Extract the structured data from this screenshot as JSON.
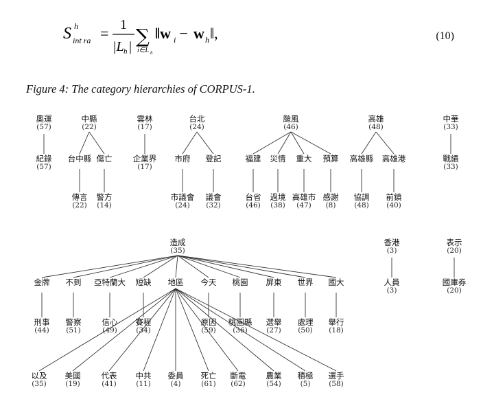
{
  "equation": {
    "lhs": "S",
    "lhs_sup": "h",
    "lhs_sub": "int ra",
    "equals": "=",
    "frac_num": "1",
    "frac_den": "|L",
    "frac_den_sub": "h",
    "frac_den_close": "|",
    "sigma": "∑",
    "sum_sub": "i∈L",
    "sum_sub_h": "h",
    "term_open": "‖w",
    "w_i_sub": "i",
    "minus": " − ",
    "w_h": "w",
    "w_h_sub": "h",
    "term_close": "‖,",
    "number": "(10)"
  },
  "caption": "Figure 4: The category hierarchies of CORPUS-1.",
  "trees": [
    {
      "name": "奧運",
      "count": "(57)",
      "children": [
        {
          "name": "紀錄",
          "count": "(57)"
        }
      ]
    },
    {
      "name": "中縣",
      "count": "(22)",
      "children": [
        {
          "name": "台中縣",
          "count": "",
          "children": [
            {
              "name": "傳言",
              "count": "(22)"
            }
          ]
        },
        {
          "name": "傷亡",
          "count": "",
          "children": [
            {
              "name": "警方",
              "count": "(14)"
            }
          ]
        }
      ]
    },
    {
      "name": "雲林",
      "count": "(17)",
      "children": [
        {
          "name": "企業界",
          "count": "(17)"
        }
      ]
    },
    {
      "name": "台北",
      "count": "(24)",
      "children": [
        {
          "name": "市府",
          "count": "",
          "children": [
            {
              "name": "市議會",
              "count": "(24)"
            }
          ]
        },
        {
          "name": "登記",
          "count": "",
          "children": [
            {
              "name": "議會",
              "count": "(32)"
            }
          ]
        }
      ]
    },
    {
      "name": "颱風",
      "count": "(46)",
      "children": [
        {
          "name": "福建",
          "count": "",
          "children": [
            {
              "name": "台省",
              "count": "(46)"
            }
          ]
        },
        {
          "name": "災情",
          "count": "",
          "children": [
            {
              "name": "過境",
              "count": "(38)"
            }
          ]
        },
        {
          "name": "重大",
          "count": "",
          "children": [
            {
              "name": "高雄市",
              "count": "(47)"
            }
          ]
        },
        {
          "name": "預算",
          "count": "",
          "children": [
            {
              "name": "感謝",
              "count": "(8)"
            }
          ]
        }
      ]
    },
    {
      "name": "高雄",
      "count": "(48)",
      "children": [
        {
          "name": "高雄縣",
          "count": "",
          "children": [
            {
              "name": "協調",
              "count": "(48)"
            }
          ]
        },
        {
          "name": "高雄港",
          "count": "",
          "children": [
            {
              "name": "前鎮",
              "count": "(40)"
            }
          ]
        }
      ]
    },
    {
      "name": "中華",
      "count": "(33)",
      "children": [
        {
          "name": "戰績",
          "count": "(33)"
        }
      ]
    },
    {
      "name": "造成",
      "count": "(35)",
      "children": [
        {
          "name": "金牌",
          "count": "",
          "children": [
            {
              "name": "刑事",
              "count": "(44)"
            }
          ]
        },
        {
          "name": "不到",
          "count": "",
          "children": [
            {
              "name": "警察",
              "count": "(51)"
            }
          ]
        },
        {
          "name": "亞特蘭大",
          "count": "",
          "children": [
            {
              "name": "信心",
              "count": "(49)"
            }
          ]
        },
        {
          "name": "短缺",
          "count": "",
          "children": [
            {
              "name": "賽程",
              "count": "(34)"
            }
          ]
        },
        {
          "name": "地區",
          "count": "",
          "children": [
            {
              "name": "以及",
              "count": "(35)"
            },
            {
              "name": "美國",
              "count": "(19)"
            },
            {
              "name": "代表",
              "count": "(41)"
            },
            {
              "name": "中共",
              "count": "(11)"
            },
            {
              "name": "委員",
              "count": "(4)"
            },
            {
              "name": "死亡",
              "count": "(61)"
            },
            {
              "name": "斷電",
              "count": "(62)"
            },
            {
              "name": "農業",
              "count": "(54)"
            },
            {
              "name": "積極",
              "count": "(5)"
            },
            {
              "name": "選手",
              "count": "(58)"
            }
          ]
        },
        {
          "name": "今天",
          "count": "",
          "children": [
            {
              "name": "原因",
              "count": "(59)"
            }
          ]
        },
        {
          "name": "桃園",
          "count": "",
          "children": [
            {
              "name": "桃園縣",
              "count": "(36)"
            }
          ]
        },
        {
          "name": "屏東",
          "count": "",
          "children": [
            {
              "name": "選舉",
              "count": "(27)"
            }
          ]
        },
        {
          "name": "世界",
          "count": "",
          "children": [
            {
              "name": "處理",
              "count": "(50)"
            }
          ]
        },
        {
          "name": "國大",
          "count": "",
          "children": [
            {
              "name": "舉行",
              "count": "(18)"
            }
          ]
        }
      ]
    },
    {
      "name": "香港",
      "count": "(3)",
      "children": [
        {
          "name": "人員",
          "count": "(3)"
        }
      ]
    },
    {
      "name": "表示",
      "count": "(20)",
      "children": [
        {
          "name": "國庫券",
          "count": "(20)"
        }
      ]
    }
  ]
}
